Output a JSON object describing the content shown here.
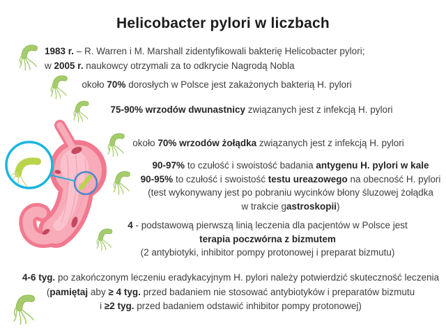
{
  "title": "Helicobacter pylori w liczbach",
  "colors": {
    "background": "#ffffff",
    "text_regular": "#3d3d3d",
    "text_bold": "#262626",
    "bacteria_green": "#a5cc6c",
    "bacteria_green_dark": "#8fbc53",
    "magnified_bacterium_green": "#b9d44c",
    "stomach_pink_outer": "#f2798f",
    "stomach_pink_inner": "#f8abb9",
    "stomach_highlight": "#fbc6d0",
    "stomach_spots": "#c5485f",
    "magnifier_cyan": "#18b6df",
    "callout_blue": "#4c87c8"
  },
  "icons": {
    "bacterium": "h-pylori-bacterium-icon",
    "illustration": "stomach-with-magnified-h-pylori"
  },
  "facts": [
    {
      "name": "discovery-history",
      "lines": [
        [
          {
            "text": "1983 r.",
            "bold": true
          },
          {
            "text": " – R. Warren i M. Marshall zidentyfikowali bakterię Helicobacter pylori;",
            "bold": false
          }
        ],
        [
          {
            "text": "w ",
            "bold": false
          },
          {
            "text": "2005 r.",
            "bold": true
          },
          {
            "text": " naukowcy otrzymali za to odkrycie Nagrodą Nobla",
            "bold": false
          }
        ]
      ]
    },
    {
      "name": "adults-infected",
      "lines": [
        [
          {
            "text": "około ",
            "bold": false
          },
          {
            "text": "70%",
            "bold": true
          },
          {
            "text": " dorosłych w Polsce jest zakażonych bakterią H. pylori",
            "bold": false
          }
        ]
      ]
    },
    {
      "name": "duodenal-ulcers",
      "lines": [
        [
          {
            "text": "75-90% wrzodów dwunastnicy",
            "bold": true
          },
          {
            "text": " związanych jest z infekcją H. pylori",
            "bold": false
          }
        ]
      ]
    },
    {
      "name": "stomach-ulcers",
      "lines": [
        [
          {
            "text": "około ",
            "bold": false
          },
          {
            "text": "70% wrzodów żołądka",
            "bold": true
          },
          {
            "text": " związanych jest z infekcją H. pylori",
            "bold": false
          }
        ]
      ]
    },
    {
      "name": "diagnostic-tests",
      "lines": [
        [
          {
            "text": "90-97%",
            "bold": true
          },
          {
            "text": " to czułość i swoistość badania ",
            "bold": false
          },
          {
            "text": "antygenu H. pylori w kale",
            "bold": true
          }
        ],
        [
          {
            "text": "90-95%",
            "bold": true
          },
          {
            "text": " to czułość i swoistość ",
            "bold": false
          },
          {
            "text": "testu ureazowego",
            "bold": true
          },
          {
            "text": " na obecność H. pylori",
            "bold": false
          }
        ],
        [
          {
            "text": "(test wykonywany jest po pobraniu wycinków błony śluzowej żołądka",
            "bold": false
          }
        ],
        [
          {
            "text": "w trakcie g",
            "bold": false
          },
          {
            "text": "astroskopii",
            "bold": true
          },
          {
            "text": ")",
            "bold": false
          }
        ]
      ]
    },
    {
      "name": "first-line-treatment",
      "lines": [
        [
          {
            "text": "4",
            "bold": true
          },
          {
            "text": " - podstawową pierwszą linią leczenia dla pacjentów w Polsce jest",
            "bold": false
          }
        ],
        [
          {
            "text": "terapia poczwórna z bizmutem",
            "bold": true
          }
        ],
        [
          {
            "text": "(2 antybiotyki, inhibitor pompy protonowej i preparat bizmutu)",
            "bold": false
          }
        ]
      ]
    },
    {
      "name": "post-treatment-check",
      "lines": [
        [
          {
            "text": "4-6 tyg.",
            "bold": true
          },
          {
            "text": " po zakończonym leczeniu eradykacyjnym H. pylori należy potwierdzić skuteczność leczenia",
            "bold": false
          }
        ],
        [
          {
            "text": "(",
            "bold": false
          },
          {
            "text": "pamiętaj",
            "bold": true
          },
          {
            "text": " aby ",
            "bold": false
          },
          {
            "text": "≥ 4 tyg.",
            "bold": true
          },
          {
            "text": " przed badaniem nie stosować antybiotyków i preparatów bizmutu",
            "bold": false
          }
        ],
        [
          {
            "text": "i ",
            "bold": false
          },
          {
            "text": "≥2 tyg.",
            "bold": true
          },
          {
            "text": " przed badaniem odstawić inhibitor pompy protonowej)",
            "bold": false
          }
        ]
      ]
    }
  ]
}
